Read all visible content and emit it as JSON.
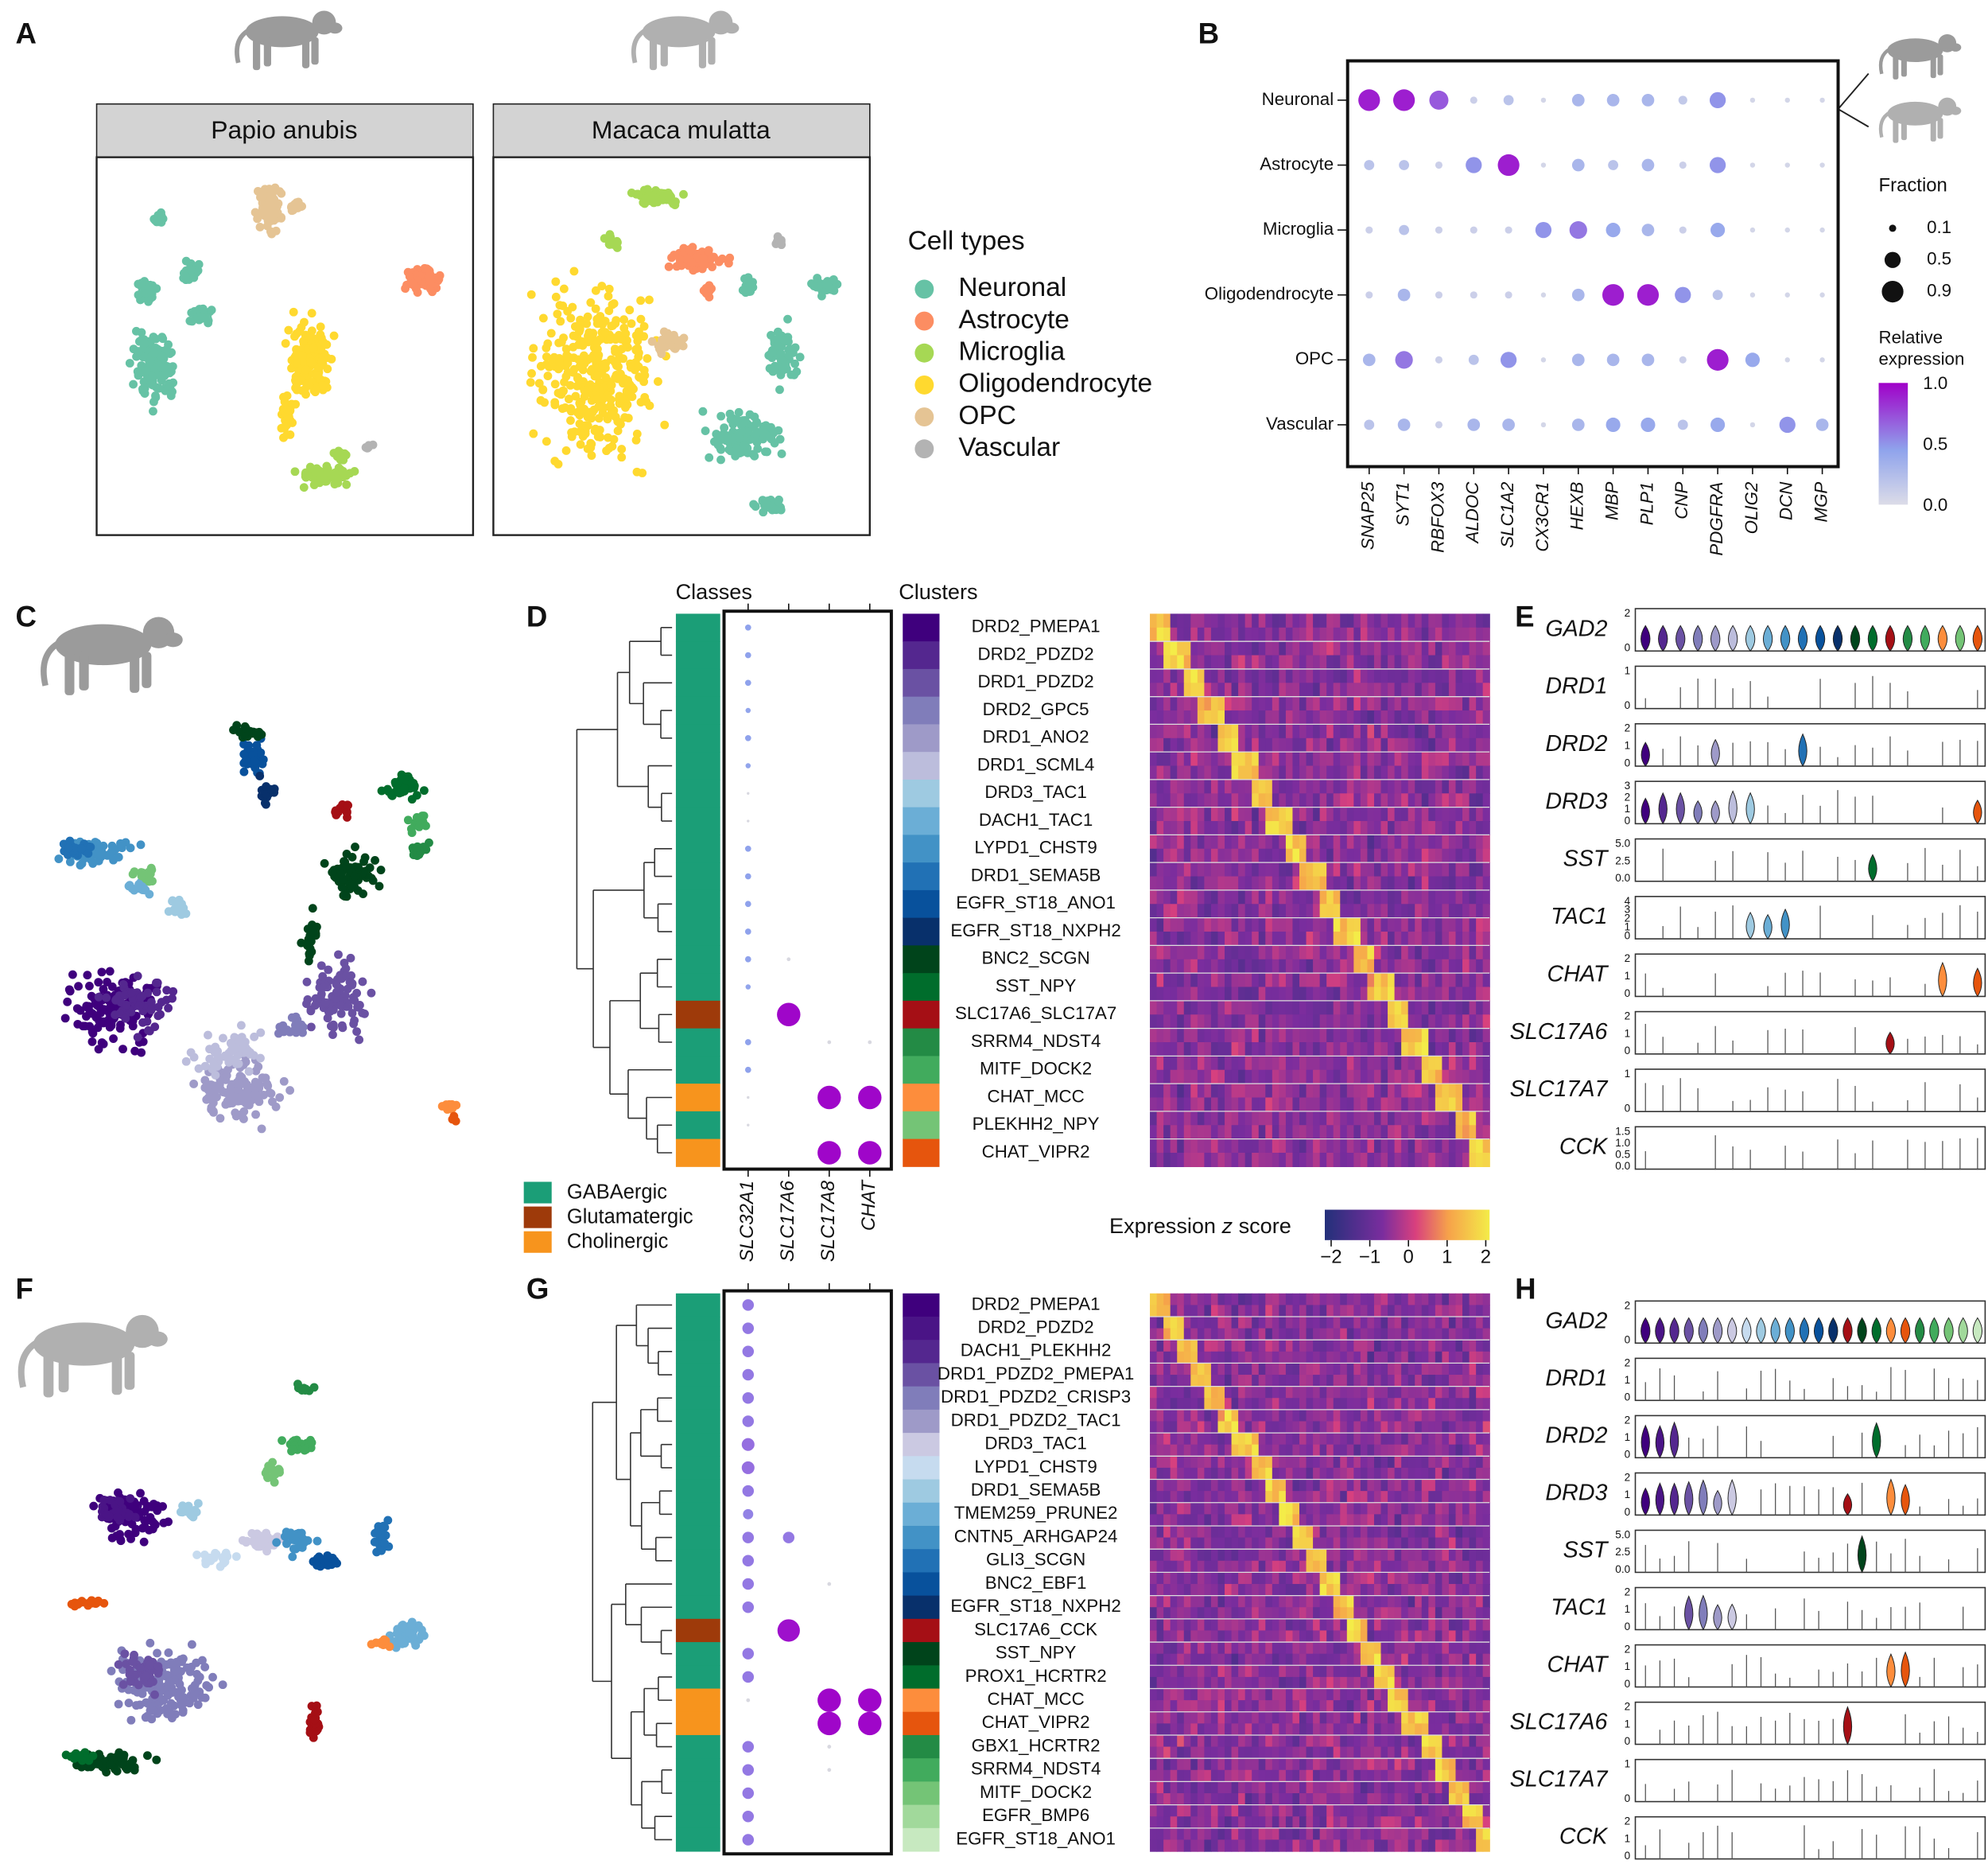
{
  "panel_labels": [
    "A",
    "B",
    "C",
    "D",
    "E",
    "F",
    "G",
    "H"
  ],
  "panel_a": {
    "species": [
      "Papio anubis",
      "Macaca mulatta"
    ],
    "legend_title": "Cell types",
    "cell_types": [
      {
        "name": "Neuronal",
        "color": "#66c2a5"
      },
      {
        "name": "Astrocyte",
        "color": "#fc8d62"
      },
      {
        "name": "Microglia",
        "color": "#a6d854"
      },
      {
        "name": "Oligodendrocyte",
        "color": "#ffd92f"
      },
      {
        "name": "OPC",
        "color": "#e5c494"
      },
      {
        "name": "Vascular",
        "color": "#b3b3b3"
      }
    ]
  },
  "panel_b": {
    "cell_types": [
      "Neuronal",
      "Astrocyte",
      "Microglia",
      "Oligodendrocyte",
      "OPC",
      "Vascular"
    ],
    "genes": [
      "SNAP25",
      "SYT1",
      "RBFOX3",
      "ALDOC",
      "SLC1A2",
      "CX3CR1",
      "HEXB",
      "MBP",
      "PLP1",
      "CNP",
      "PDGFRA",
      "OLIG2",
      "DCN",
      "MGP"
    ],
    "fraction": [
      [
        0.9,
        0.9,
        0.7,
        0.1,
        0.2,
        0.05,
        0.3,
        0.3,
        0.3,
        0.15,
        0.5,
        0.05,
        0.05,
        0.05
      ],
      [
        0.2,
        0.2,
        0.1,
        0.5,
        0.9,
        0.05,
        0.3,
        0.2,
        0.3,
        0.1,
        0.5,
        0.05,
        0.05,
        0.05
      ],
      [
        0.1,
        0.2,
        0.1,
        0.1,
        0.1,
        0.5,
        0.6,
        0.4,
        0.3,
        0.1,
        0.4,
        0.05,
        0.05,
        0.05
      ],
      [
        0.1,
        0.3,
        0.1,
        0.1,
        0.1,
        0.05,
        0.3,
        0.9,
        0.9,
        0.5,
        0.2,
        0.05,
        0.05,
        0.05
      ],
      [
        0.3,
        0.6,
        0.1,
        0.2,
        0.5,
        0.05,
        0.3,
        0.3,
        0.3,
        0.1,
        0.9,
        0.4,
        0.05,
        0.05
      ],
      [
        0.2,
        0.3,
        0.1,
        0.3,
        0.3,
        0.05,
        0.3,
        0.4,
        0.4,
        0.2,
        0.4,
        0.05,
        0.5,
        0.3
      ]
    ],
    "fraction_legend": {
      "title": "Fraction",
      "ticks": [
        0.1,
        0.5,
        0.9
      ]
    },
    "color_legend": {
      "title": [
        "Relative",
        "expression"
      ],
      "ticks": [
        "1.0",
        "0.5",
        "0.0"
      ]
    }
  },
  "panel_d": {
    "headers": {
      "classes": "Classes",
      "clusters": "Clusters"
    },
    "genes": [
      "SLC32A1",
      "SLC17A6",
      "SLC17A8",
      "CHAT"
    ],
    "classes": [
      {
        "name": "GABAergic",
        "color": "#1b9e77"
      },
      {
        "name": "Glutamatergic",
        "color": "#9e3a0a"
      },
      {
        "name": "Cholinergic",
        "color": "#f7941d"
      }
    ],
    "clusters": [
      {
        "name": "DRD2_PMEPA1",
        "color": "#3f007d",
        "class": "GABAergic",
        "dots": [
          0.15,
          0,
          0,
          0
        ]
      },
      {
        "name": "DRD2_PDZD2",
        "color": "#54278f",
        "class": "GABAergic",
        "dots": [
          0.15,
          0,
          0,
          0
        ]
      },
      {
        "name": "DRD1_PDZD2",
        "color": "#6a51a3",
        "class": "GABAergic",
        "dots": [
          0.15,
          0,
          0,
          0
        ]
      },
      {
        "name": "DRD2_GPC5",
        "color": "#807dba",
        "class": "GABAergic",
        "dots": [
          0.12,
          0,
          0,
          0
        ]
      },
      {
        "name": "DRD1_ANO2",
        "color": "#9e9ac8",
        "class": "GABAergic",
        "dots": [
          0.15,
          0,
          0,
          0
        ]
      },
      {
        "name": "DRD1_SCML4",
        "color": "#bcbddc",
        "class": "GABAergic",
        "dots": [
          0.12,
          0,
          0,
          0
        ]
      },
      {
        "name": "DRD3_TAC1",
        "color": "#9ecae1",
        "class": "GABAergic",
        "dots": [
          0.05,
          0,
          0,
          0
        ]
      },
      {
        "name": "DACH1_TAC1",
        "color": "#6baed6",
        "class": "GABAergic",
        "dots": [
          0.05,
          0,
          0,
          0
        ]
      },
      {
        "name": "LYPD1_CHST9",
        "color": "#4292c6",
        "class": "GABAergic",
        "dots": [
          0.15,
          0,
          0,
          0
        ]
      },
      {
        "name": "DRD1_SEMA5B",
        "color": "#2171b5",
        "class": "GABAergic",
        "dots": [
          0.15,
          0,
          0,
          0
        ]
      },
      {
        "name": "EGFR_ST18_ANO1",
        "color": "#08519c",
        "class": "GABAergic",
        "dots": [
          0.15,
          0,
          0,
          0
        ]
      },
      {
        "name": "EGFR_ST18_NXPH2",
        "color": "#08306b",
        "class": "GABAergic",
        "dots": [
          0.15,
          0,
          0,
          0
        ]
      },
      {
        "name": "BNC2_SCGN",
        "color": "#00441b",
        "class": "GABAergic",
        "dots": [
          0.15,
          0.08,
          0,
          0
        ]
      },
      {
        "name": "SST_NPY",
        "color": "#006d2c",
        "class": "GABAergic",
        "dots": [
          0.12,
          0,
          0,
          0
        ]
      },
      {
        "name": "SLC17A6_SLC17A7",
        "color": "#a50f15",
        "class": "Glutamatergic",
        "dots": [
          0,
          0.9,
          0,
          0
        ]
      },
      {
        "name": "SRRM4_NDST4",
        "color": "#238b45",
        "class": "GABAergic",
        "dots": [
          0.15,
          0,
          0.08,
          0.08
        ]
      },
      {
        "name": "MITF_DOCK2",
        "color": "#41ab5d",
        "class": "GABAergic",
        "dots": [
          0.15,
          0,
          0,
          0
        ]
      },
      {
        "name": "CHAT_MCC",
        "color": "#fd8d3c",
        "class": "Cholinergic",
        "dots": [
          0.05,
          0,
          0.9,
          0.9
        ]
      },
      {
        "name": "PLEKHH2_NPY",
        "color": "#74c476",
        "class": "GABAergic",
        "dots": [
          0.05,
          0,
          0,
          0
        ]
      },
      {
        "name": "CHAT_VIPR2",
        "color": "#e6550d",
        "class": "Cholinergic",
        "dots": [
          0,
          0,
          0.9,
          0.9
        ]
      }
    ],
    "colorbar": {
      "title": [
        "Expression",
        "z",
        "score"
      ],
      "ticks": [
        "−2",
        "−1",
        "0",
        "1",
        "2"
      ]
    }
  },
  "panel_e": {
    "genes": [
      {
        "name": "GAD2",
        "ticks": [
          "2",
          "0"
        ]
      },
      {
        "name": "DRD1",
        "ticks": [
          "1",
          "0"
        ]
      },
      {
        "name": "DRD2",
        "ticks": [
          "2",
          "1",
          "0"
        ]
      },
      {
        "name": "DRD3",
        "ticks": [
          "3",
          "2",
          "1",
          "0"
        ]
      },
      {
        "name": "SST",
        "ticks": [
          "5.0",
          "2.5",
          "0.0"
        ]
      },
      {
        "name": "TAC1",
        "ticks": [
          "4",
          "3",
          "2",
          "1",
          "0"
        ]
      },
      {
        "name": "CHAT",
        "ticks": [
          "2",
          "1",
          "0"
        ]
      },
      {
        "name": "SLC17A6",
        "ticks": [
          "2",
          "1",
          "0"
        ]
      },
      {
        "name": "SLC17A7",
        "ticks": [
          "1",
          "0"
        ]
      },
      {
        "name": "CCK",
        "ticks": [
          "1.5",
          "1.0",
          "0.5",
          "0.0"
        ]
      }
    ]
  },
  "panel_g": {
    "clusters": [
      {
        "name": "DRD2_PMEPA1",
        "color": "#3f007d",
        "class": "GABAergic",
        "dots": [
          0.35,
          0,
          0,
          0
        ]
      },
      {
        "name": "DRD2_PDZD2",
        "color": "#4a1486",
        "class": "GABAergic",
        "dots": [
          0.35,
          0,
          0,
          0
        ]
      },
      {
        "name": "DACH1_PLEKHH2",
        "color": "#54278f",
        "class": "GABAergic",
        "dots": [
          0.35,
          0,
          0,
          0
        ]
      },
      {
        "name": "DRD1_PDZD2_PMEPA1",
        "color": "#6a51a3",
        "class": "GABAergic",
        "dots": [
          0.35,
          0,
          0,
          0
        ]
      },
      {
        "name": "DRD1_PDZD2_CRISP3",
        "color": "#807dba",
        "class": "GABAergic",
        "dots": [
          0.35,
          0,
          0,
          0
        ]
      },
      {
        "name": "DRD1_PDZD2_TAC1",
        "color": "#9e9ac8",
        "class": "GABAergic",
        "dots": [
          0.35,
          0,
          0,
          0
        ]
      },
      {
        "name": "DRD3_TAC1",
        "color": "#cbc9e2",
        "class": "GABAergic",
        "dots": [
          0.4,
          0,
          0,
          0
        ]
      },
      {
        "name": "LYPD1_CHST9",
        "color": "#c6dbef",
        "class": "GABAergic",
        "dots": [
          0.4,
          0,
          0,
          0
        ]
      },
      {
        "name": "DRD1_SEMA5B",
        "color": "#9ecae1",
        "class": "GABAergic",
        "dots": [
          0.35,
          0,
          0,
          0
        ]
      },
      {
        "name": "TMEM259_PRUNE2",
        "color": "#6baed6",
        "class": "GABAergic",
        "dots": [
          0.3,
          0,
          0,
          0
        ]
      },
      {
        "name": "CNTN5_ARHGAP24",
        "color": "#4292c6",
        "class": "GABAergic",
        "dots": [
          0.35,
          0.35,
          0,
          0
        ]
      },
      {
        "name": "GLI3_SCGN",
        "color": "#2171b5",
        "class": "GABAergic",
        "dots": [
          0.35,
          0,
          0,
          0
        ]
      },
      {
        "name": "BNC2_EBF1",
        "color": "#08519c",
        "class": "GABAergic",
        "dots": [
          0.35,
          0,
          0.08,
          0
        ]
      },
      {
        "name": "EGFR_ST18_NXPH2",
        "color": "#08306b",
        "class": "GABAergic",
        "dots": [
          0.35,
          0,
          0,
          0
        ]
      },
      {
        "name": "SLC17A6_CCK",
        "color": "#a50f15",
        "class": "Glutamatergic",
        "dots": [
          0,
          0.85,
          0,
          0
        ]
      },
      {
        "name": "SST_NPY",
        "color": "#00441b",
        "class": "GABAergic",
        "dots": [
          0.35,
          0,
          0,
          0
        ]
      },
      {
        "name": "PROX1_HCRTR2",
        "color": "#006d2c",
        "class": "GABAergic",
        "dots": [
          0.35,
          0,
          0,
          0
        ]
      },
      {
        "name": "CHAT_MCC",
        "color": "#fd8d3c",
        "class": "Cholinergic",
        "dots": [
          0.08,
          0,
          0.9,
          0.9
        ]
      },
      {
        "name": "CHAT_VIPR2",
        "color": "#e6550d",
        "class": "Cholinergic",
        "dots": [
          0,
          0,
          0.9,
          0.9
        ]
      },
      {
        "name": "GBX1_HCRTR2",
        "color": "#238b45",
        "class": "GABAergic",
        "dots": [
          0.35,
          0,
          0.08,
          0
        ]
      },
      {
        "name": "SRRM4_NDST4",
        "color": "#41ab5d",
        "class": "GABAergic",
        "dots": [
          0.35,
          0,
          0.08,
          0
        ]
      },
      {
        "name": "MITF_DOCK2",
        "color": "#74c476",
        "class": "GABAergic",
        "dots": [
          0.35,
          0,
          0,
          0
        ]
      },
      {
        "name": "EGFR_BMP6",
        "color": "#a1d99b",
        "class": "GABAergic",
        "dots": [
          0.35,
          0,
          0,
          0
        ]
      },
      {
        "name": "EGFR_ST18_ANO1",
        "color": "#c7e9c0",
        "class": "GABAergic",
        "dots": [
          0.35,
          0,
          0,
          0
        ]
      }
    ]
  },
  "panel_h": {
    "genes": [
      {
        "name": "GAD2",
        "ticks": [
          "2",
          "0"
        ]
      },
      {
        "name": "DRD1",
        "ticks": [
          "2",
          "1",
          "0"
        ]
      },
      {
        "name": "DRD2",
        "ticks": [
          "2",
          "1",
          "0"
        ]
      },
      {
        "name": "DRD3",
        "ticks": [
          "2",
          "1",
          "0"
        ]
      },
      {
        "name": "SST",
        "ticks": [
          "5.0",
          "2.5",
          "0.0"
        ]
      },
      {
        "name": "TAC1",
        "ticks": [
          "2",
          "1",
          "0"
        ]
      },
      {
        "name": "CHAT",
        "ticks": [
          "2",
          "1",
          "0"
        ]
      },
      {
        "name": "SLC17A6",
        "ticks": [
          "2",
          "1",
          "0"
        ]
      },
      {
        "name": "SLC17A7",
        "ticks": [
          "1",
          "0"
        ]
      },
      {
        "name": "CCK",
        "ticks": [
          "2",
          "1",
          "0"
        ]
      }
    ]
  }
}
